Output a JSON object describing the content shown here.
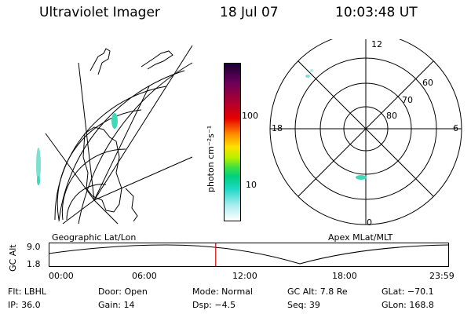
{
  "header": {
    "instrument": "Ultraviolet Imager",
    "date": "18 Jul 07",
    "time": "10:03:48 UT"
  },
  "map_panel": {
    "label": "Geographic Lat/Lon"
  },
  "colorbar": {
    "unit_label": "photon cm⁻²s⁻¹",
    "tick_100": "100",
    "tick_10": "10"
  },
  "polar_panel": {
    "label": "Apex MLat/MLT",
    "mlt_12": "12",
    "mlt_18": "18",
    "mlt_6": "6",
    "mlt_0": "0",
    "mlat_60": "60",
    "mlat_70": "70",
    "mlat_80": "80"
  },
  "timeline": {
    "axis_label": "GC Alt",
    "y_top": "9.0",
    "y_bottom": "1.8",
    "ticks": [
      "00:00",
      "06:00",
      "12:00",
      "18:00",
      "23:59"
    ],
    "current_time_fraction": 0.418
  },
  "status": {
    "filter": "Flt: LBHL",
    "door": "Door: Open",
    "mode": "Mode: Normal",
    "gc_alt": "GC Alt: 7.8 Re",
    "glat": "GLat: −70.1",
    "ip": "IP: 36.0",
    "gain": "Gain: 14",
    "dsp": "Dsp:    −4.5",
    "seq": "Seq: 39",
    "glon": "GLon: 168.8"
  },
  "colors": {
    "marker": "#d40000",
    "emission": "#3fd9b8"
  }
}
